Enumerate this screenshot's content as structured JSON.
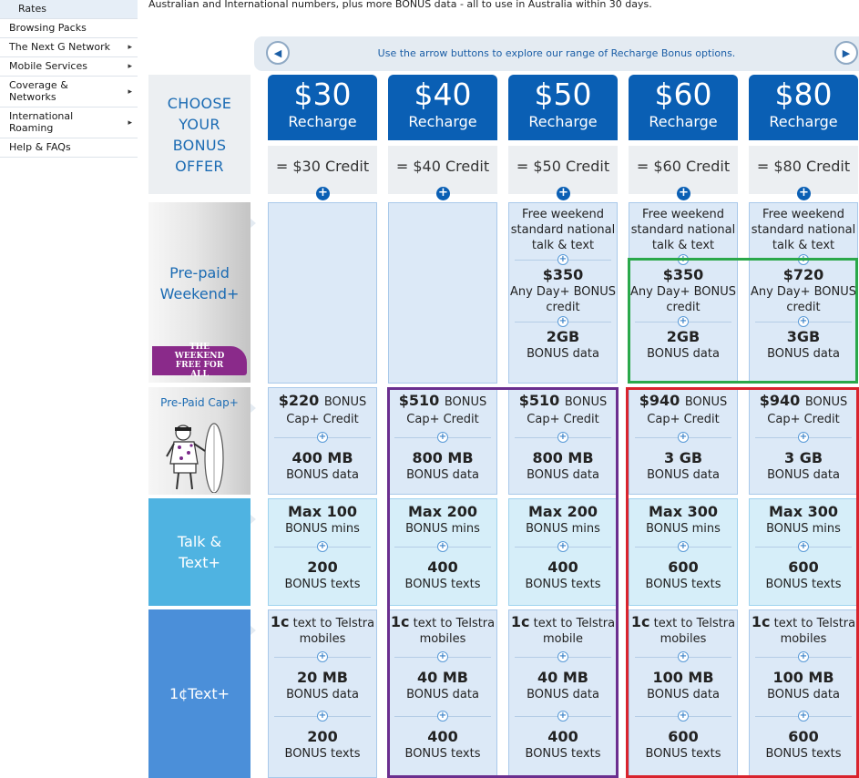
{
  "sidebar": {
    "items": [
      {
        "label": "Rates",
        "arrow": false,
        "active": true
      },
      {
        "label": "Browsing Packs",
        "arrow": false
      },
      {
        "label": "The Next G Network",
        "arrow": true
      },
      {
        "label": "Mobile Services",
        "arrow": true
      },
      {
        "label": "Coverage & Networks",
        "arrow": true
      },
      {
        "label": "International Roaming",
        "arrow": true
      },
      {
        "label": "Help & FAQs",
        "arrow": false
      }
    ]
  },
  "intro_text": "Australian and International numbers, plus more BONUS data - all to use in Australia within 30 days.",
  "nav": {
    "instruction": "Use the arrow buttons to explore our range of Recharge Bonus options.",
    "prev_icon": "◀",
    "next_icon": "▶"
  },
  "rows": {
    "choose": "CHOOSE YOUR BONUS OFFER",
    "weekend": "Pre-paid Weekend+",
    "weekend_badge": "THE WEEKEND FREE FOR ALL",
    "cap": "Pre-Paid Cap+",
    "talk": "Talk & Text+",
    "text": "1¢Text+"
  },
  "plus_glyph": "+",
  "columns": [
    {
      "price": "$30",
      "recharge": "Recharge",
      "credit": "= $30 Credit",
      "weekend": null,
      "cap": {
        "amount": "$220",
        "amount_suffix": "BONUS",
        "amount_label": "Cap+ Credit",
        "data": "400 MB",
        "data_label": "BONUS data"
      },
      "talk": {
        "mins": "Max 100",
        "mins_label": "BONUS mins",
        "texts": "200",
        "texts_label": "BONUS texts"
      },
      "text": {
        "c": "1c",
        "c_label": "text to Telstra",
        "c_label2": "mobiles",
        "data": "20 MB",
        "data_label": "BONUS data",
        "texts": "200",
        "texts_label": "BONUS texts"
      }
    },
    {
      "price": "$40",
      "recharge": "Recharge",
      "credit": "= $40 Credit",
      "weekend": null,
      "cap": {
        "amount": "$510",
        "amount_suffix": "BONUS",
        "amount_label": "Cap+ Credit",
        "data": "800 MB",
        "data_label": "BONUS data"
      },
      "talk": {
        "mins": "Max 200",
        "mins_label": "BONUS mins",
        "texts": "400",
        "texts_label": "BONUS texts"
      },
      "text": {
        "c": "1c",
        "c_label": "text to Telstra",
        "c_label2": "mobiles",
        "data": "40 MB",
        "data_label": "BONUS data",
        "texts": "400",
        "texts_label": "BONUS texts"
      }
    },
    {
      "price": "$50",
      "recharge": "Recharge",
      "credit": "= $50 Credit",
      "weekend": {
        "line1": "Free weekend",
        "line2": "standard national",
        "line3": "talk & text",
        "amount": "$350",
        "amount_label1": "Any Day+ BONUS",
        "amount_label2": "credit",
        "data": "2GB",
        "data_label": "BONUS data"
      },
      "cap": {
        "amount": "$510",
        "amount_suffix": "BONUS",
        "amount_label": "Cap+ Credit",
        "data": "800 MB",
        "data_label": "BONUS data"
      },
      "talk": {
        "mins": "Max 200",
        "mins_label": "BONUS mins",
        "texts": "400",
        "texts_label": "BONUS texts"
      },
      "text": {
        "c": "1c",
        "c_label": "text to Telstra",
        "c_label2": "mobile",
        "data": "40 MB",
        "data_label": "BONUS data",
        "texts": "400",
        "texts_label": "BONUS texts"
      }
    },
    {
      "price": "$60",
      "recharge": "Recharge",
      "credit": "= $60 Credit",
      "weekend": {
        "line1": "Free weekend",
        "line2": "standard national",
        "line3": "talk & text",
        "amount": "$350",
        "amount_label1": "Any Day+ BONUS",
        "amount_label2": "credit",
        "data": "2GB",
        "data_label": "BONUS data"
      },
      "cap": {
        "amount": "$940",
        "amount_suffix": "BONUS",
        "amount_label": "Cap+ Credit",
        "data": "3 GB",
        "data_label": "BONUS data"
      },
      "talk": {
        "mins": "Max 300",
        "mins_label": "BONUS mins",
        "texts": "600",
        "texts_label": "BONUS texts"
      },
      "text": {
        "c": "1c",
        "c_label": "text to Telstra",
        "c_label2": "mobiles",
        "data": "100 MB",
        "data_label": "BONUS data",
        "texts": "600",
        "texts_label": "BONUS texts"
      }
    },
    {
      "price": "$80",
      "recharge": "Recharge",
      "credit": "= $80 Credit",
      "weekend": {
        "line1": "Free weekend",
        "line2": "standard national",
        "line3": "talk & text",
        "amount": "$720",
        "amount_label1": "Any Day+ BONUS",
        "amount_label2": "credit",
        "data": "3GB",
        "data_label": "BONUS data"
      },
      "cap": {
        "amount": "$940",
        "amount_suffix": "BONUS",
        "amount_label": "Cap+ Credit",
        "data": "3 GB",
        "data_label": "BONUS data"
      },
      "talk": {
        "mins": "Max 300",
        "mins_label": "BONUS mins",
        "texts": "600",
        "texts_label": "BONUS texts"
      },
      "text": {
        "c": "1c",
        "c_label": "text to Telstra",
        "c_label2": "mobiles",
        "data": "100 MB",
        "data_label": "BONUS data",
        "texts": "600",
        "texts_label": "BONUS texts"
      }
    }
  ],
  "colors": {
    "header_blue": "#0a5fb4",
    "talk_cyan": "#4fb3e1",
    "text_blue": "#4b8fd9",
    "highlight_green": "#2aa84a",
    "highlight_purple": "#6b2f8f",
    "highlight_red": "#d9232d"
  }
}
